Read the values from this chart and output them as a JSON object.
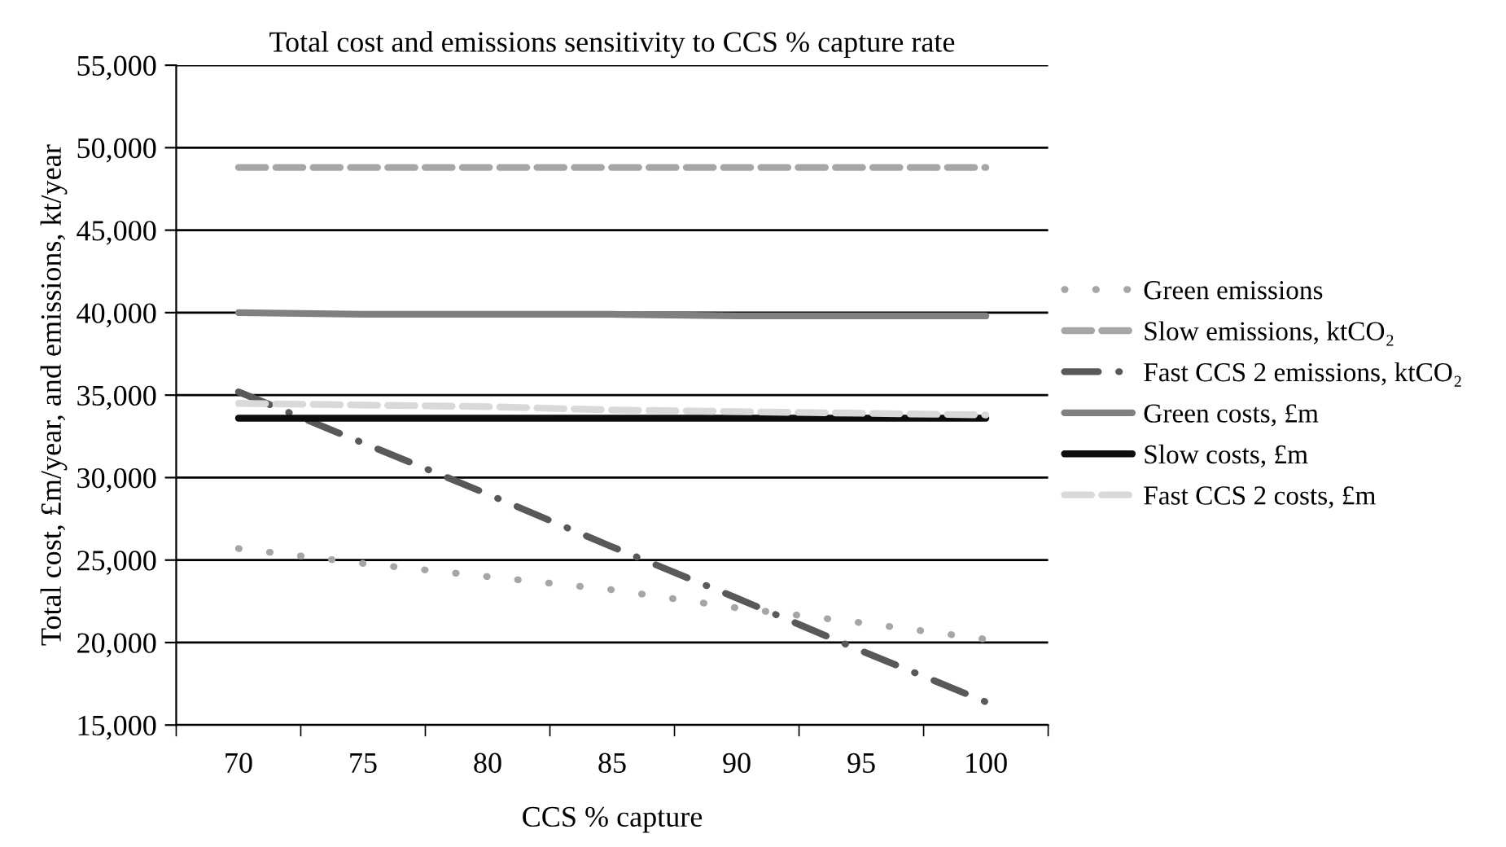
{
  "chart_data": {
    "type": "line",
    "title": "Total cost and emissions sensitivity to CCS % capture rate",
    "xlabel": "CCS % capture",
    "ylabel": "Total cost, £m/year, and emissions, kt/year",
    "categories": [
      "70",
      "75",
      "80",
      "85",
      "90",
      "95",
      "100"
    ],
    "series": [
      {
        "name": "Green emissions",
        "color": "#a6a6a6",
        "line_style": "dotted",
        "values": [
          25700,
          24800,
          24000,
          23200,
          22100,
          21200,
          20200
        ]
      },
      {
        "name": "Slow emissions, ktCO₂",
        "color": "#a6a6a6",
        "line_style": "dashed",
        "values": [
          48800,
          48800,
          48800,
          48800,
          48800,
          48800,
          48800
        ]
      },
      {
        "name": "Fast CCS 2 emissions, ktCO₂",
        "color": "#595959",
        "line_style": "dashdot",
        "values": [
          35200,
          32100,
          29000,
          25800,
          22700,
          19500,
          16400
        ]
      },
      {
        "name": "Green costs, £m",
        "color": "#808080",
        "line_style": "solid",
        "values": [
          40000,
          39900,
          39900,
          39900,
          39800,
          39800,
          39800
        ]
      },
      {
        "name": "Slow costs, £m",
        "color": "#0d0d0d",
        "line_style": "solid",
        "values": [
          33600,
          33600,
          33600,
          33600,
          33600,
          33600,
          33600
        ]
      },
      {
        "name": "Fast CCS 2 costs, £m",
        "color": "#d9d9d9",
        "line_style": "dashed",
        "values": [
          34500,
          34400,
          34300,
          34100,
          34000,
          33900,
          33800
        ]
      }
    ],
    "ylim": [
      15000,
      55000
    ],
    "yticks": [
      {
        "value": 15000,
        "label": "15,000"
      },
      {
        "value": 20000,
        "label": "20,000"
      },
      {
        "value": 25000,
        "label": "25,000"
      },
      {
        "value": 30000,
        "label": "30,000"
      },
      {
        "value": 35000,
        "label": "35,000"
      },
      {
        "value": 40000,
        "label": "40,000"
      },
      {
        "value": 45000,
        "label": "45,000"
      },
      {
        "value": 50000,
        "label": "50,000"
      },
      {
        "value": 55000,
        "label": "55,000"
      }
    ],
    "grid": "y",
    "legend": "right",
    "marker": "none"
  }
}
